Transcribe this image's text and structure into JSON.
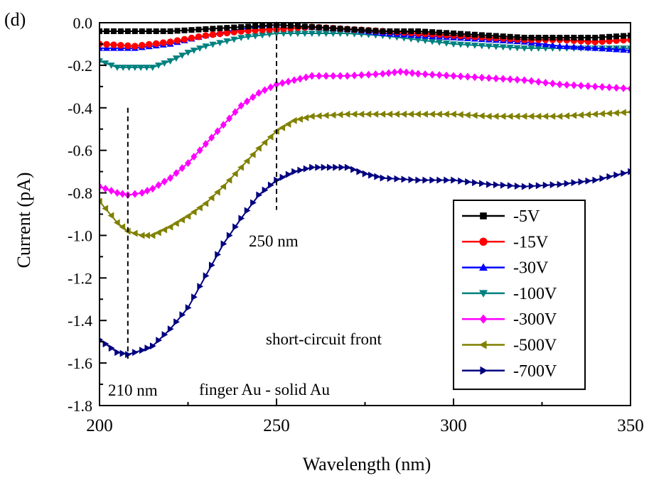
{
  "panel_label": "(d)",
  "chart_data": {
    "type": "line",
    "xlabel": "Wavelength (nm)",
    "ylabel": "Current (pA)",
    "xlim": [
      200,
      350
    ],
    "ylim": [
      -1.8,
      0.0
    ],
    "x_ticks": [
      {
        "value": 200,
        "label": "200"
      },
      {
        "value": 250,
        "label": "250"
      },
      {
        "value": 300,
        "label": "300"
      },
      {
        "value": 350,
        "label": "350"
      }
    ],
    "y_ticks": [
      {
        "value": 0.0,
        "label": "0.0"
      },
      {
        "value": -0.2,
        "label": "-0.2"
      },
      {
        "value": -0.4,
        "label": "-0.4"
      },
      {
        "value": -0.6,
        "label": "-0.6"
      },
      {
        "value": -0.8,
        "label": "-0.8"
      },
      {
        "value": -1.0,
        "label": "-1.0"
      },
      {
        "value": -1.2,
        "label": "-1.2"
      },
      {
        "value": -1.4,
        "label": "-1.4"
      },
      {
        "value": -1.6,
        "label": "-1.6"
      },
      {
        "value": -1.8,
        "label": "-1.8"
      }
    ],
    "legend_position": "bottom-right",
    "series": [
      {
        "name": "-5V",
        "color": "#000000",
        "marker": "square",
        "x": [
          200,
          210,
          220,
          230,
          240,
          250,
          260,
          270,
          280,
          290,
          300,
          310,
          320,
          330,
          340,
          350
        ],
        "y": [
          -0.04,
          -0.04,
          -0.04,
          -0.03,
          -0.02,
          -0.01,
          -0.02,
          -0.03,
          -0.04,
          -0.04,
          -0.05,
          -0.06,
          -0.07,
          -0.07,
          -0.07,
          -0.06
        ]
      },
      {
        "name": "-15V",
        "color": "#ff0000",
        "marker": "circle",
        "x": [
          200,
          210,
          220,
          230,
          240,
          250,
          260,
          270,
          280,
          290,
          300,
          310,
          320,
          330,
          340,
          350
        ],
        "y": [
          -0.1,
          -0.11,
          -0.09,
          -0.06,
          -0.04,
          -0.03,
          -0.02,
          -0.03,
          -0.04,
          -0.05,
          -0.06,
          -0.07,
          -0.08,
          -0.08,
          -0.09,
          -0.08
        ]
      },
      {
        "name": "-30V",
        "color": "#0000ff",
        "marker": "triangle-up",
        "x": [
          200,
          210,
          220,
          230,
          240,
          250,
          260,
          270,
          280,
          290,
          300,
          310,
          320,
          330,
          340,
          350
        ],
        "y": [
          -0.12,
          -0.12,
          -0.1,
          -0.06,
          -0.03,
          -0.01,
          -0.02,
          -0.03,
          -0.05,
          -0.06,
          -0.07,
          -0.08,
          -0.09,
          -0.11,
          -0.12,
          -0.13
        ]
      },
      {
        "name": "-100V",
        "color": "#008080",
        "marker": "triangle-down",
        "x": [
          200,
          205,
          210,
          215,
          220,
          225,
          230,
          240,
          250,
          260,
          270,
          280,
          290,
          300,
          310,
          320,
          330,
          340,
          350
        ],
        "y": [
          -0.18,
          -0.21,
          -0.21,
          -0.21,
          -0.18,
          -0.14,
          -0.11,
          -0.07,
          -0.05,
          -0.05,
          -0.05,
          -0.06,
          -0.08,
          -0.1,
          -0.11,
          -0.12,
          -0.12,
          -0.12,
          -0.12
        ]
      },
      {
        "name": "-300V",
        "color": "#ff00ff",
        "marker": "diamond",
        "x": [
          200,
          205,
          208,
          212,
          215,
          220,
          225,
          230,
          235,
          240,
          245,
          250,
          255,
          260,
          270,
          280,
          285,
          290,
          300,
          310,
          320,
          330,
          340,
          350
        ],
        "y": [
          -0.77,
          -0.8,
          -0.81,
          -0.8,
          -0.78,
          -0.73,
          -0.66,
          -0.57,
          -0.48,
          -0.39,
          -0.33,
          -0.29,
          -0.27,
          -0.25,
          -0.25,
          -0.24,
          -0.23,
          -0.24,
          -0.25,
          -0.26,
          -0.27,
          -0.29,
          -0.3,
          -0.31
        ]
      },
      {
        "name": "-500V",
        "color": "#808000",
        "marker": "triangle-left",
        "x": [
          200,
          205,
          208,
          212,
          215,
          220,
          225,
          230,
          235,
          240,
          245,
          250,
          255,
          260,
          270,
          280,
          290,
          300,
          310,
          320,
          330,
          340,
          350
        ],
        "y": [
          -0.84,
          -0.94,
          -0.98,
          -1.0,
          -1.0,
          -0.96,
          -0.91,
          -0.85,
          -0.77,
          -0.68,
          -0.59,
          -0.51,
          -0.46,
          -0.44,
          -0.43,
          -0.43,
          -0.43,
          -0.43,
          -0.44,
          -0.44,
          -0.44,
          -0.43,
          -0.42
        ]
      },
      {
        "name": "-700V",
        "color": "#000080",
        "marker": "triangle-right",
        "x": [
          200,
          205,
          208,
          212,
          215,
          220,
          225,
          230,
          235,
          240,
          245,
          250,
          255,
          260,
          265,
          270,
          275,
          280,
          290,
          300,
          310,
          320,
          330,
          340,
          350
        ],
        "y": [
          -1.49,
          -1.55,
          -1.56,
          -1.54,
          -1.52,
          -1.44,
          -1.34,
          -1.19,
          -1.04,
          -0.92,
          -0.81,
          -0.74,
          -0.7,
          -0.68,
          -0.68,
          -0.68,
          -0.71,
          -0.73,
          -0.74,
          -0.74,
          -0.76,
          -0.77,
          -0.76,
          -0.74,
          -0.7
        ]
      }
    ],
    "reference_lines": [
      {
        "x": 208,
        "y_from": -1.58,
        "y_to": -0.4,
        "label": "210 nm"
      },
      {
        "x": 250,
        "y_from": -0.88,
        "y_to": -0.02,
        "label": "250 nm"
      }
    ],
    "annotations": [
      {
        "text": "short-circuit  front",
        "x": 247,
        "y": -1.52
      },
      {
        "text": "finger Au - solid Au",
        "x": 228,
        "y": -1.72
      }
    ]
  }
}
